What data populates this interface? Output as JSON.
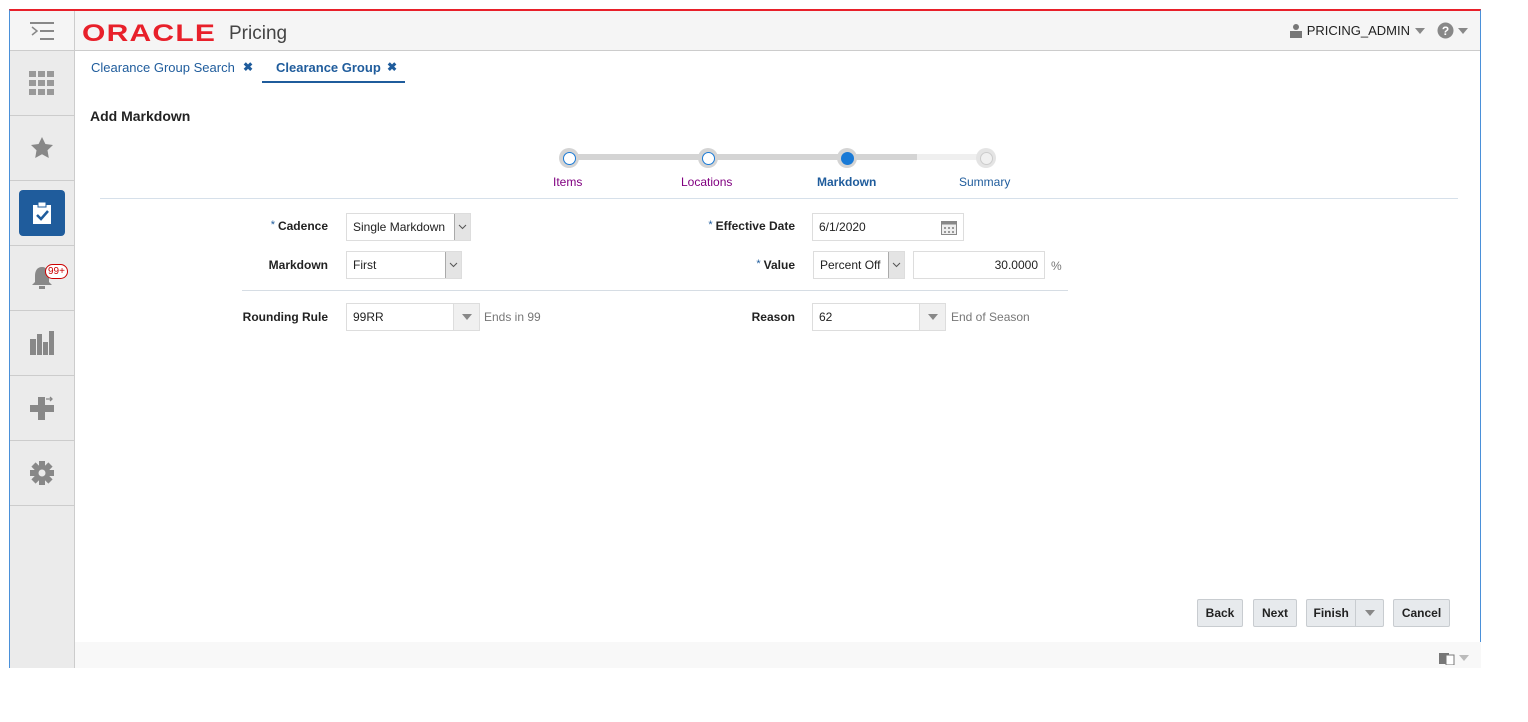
{
  "header": {
    "brand": "ORACLE",
    "app_name": "Pricing",
    "user": "PRICING_ADMIN",
    "brand_color": "#e8202a",
    "accent": "#1f5c9c"
  },
  "sidebar": {
    "items": [
      {
        "icon": "grid-icon"
      },
      {
        "icon": "star-icon"
      },
      {
        "icon": "tasks-icon",
        "active": true
      },
      {
        "icon": "bell-icon",
        "badge": "99+"
      },
      {
        "icon": "reports-icon"
      },
      {
        "icon": "add-icon"
      },
      {
        "icon": "gear-icon"
      }
    ]
  },
  "tabs": [
    {
      "label": "Clearance Group Search",
      "active": false
    },
    {
      "label": "Clearance Group",
      "active": true
    }
  ],
  "page_title": "Add Markdown",
  "train": {
    "steps": [
      {
        "label": "Items",
        "state": "visited"
      },
      {
        "label": "Locations",
        "state": "visited"
      },
      {
        "label": "Markdown",
        "state": "current"
      },
      {
        "label": "Summary",
        "state": "unvisited"
      }
    ]
  },
  "form": {
    "cadence": {
      "label": "Cadence",
      "value": "Single Markdown",
      "required": true
    },
    "markdown": {
      "label": "Markdown",
      "value": "First"
    },
    "effective_date": {
      "label": "Effective Date",
      "value": "6/1/2020",
      "required": true
    },
    "value": {
      "label": "Value",
      "type": "Percent Off",
      "amount": "30.0000",
      "unit": "%",
      "required": true
    },
    "rounding_rule": {
      "label": "Rounding Rule",
      "value": "99RR",
      "description": "Ends in 99"
    },
    "reason": {
      "label": "Reason",
      "value": "62",
      "description": "End of Season"
    }
  },
  "buttons": {
    "back": "Back",
    "next": "Next",
    "finish": "Finish",
    "cancel": "Cancel"
  }
}
